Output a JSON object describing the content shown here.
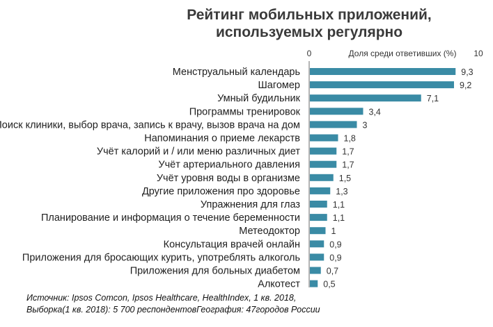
{
  "chart_data": {
    "type": "bar",
    "orientation": "horizontal",
    "title_lines": [
      "Рейтинг мобильных приложений,",
      "используемых регулярно"
    ],
    "axis_label": "Доля среди ответивших (%)",
    "xlim": [
      0,
      10
    ],
    "tick_labels": [
      "0",
      "10"
    ],
    "bar_color": "#3a8ba5",
    "categories": [
      "Менструальный календарь",
      "Шагомер",
      "Умный будильник",
      "Программы тренировок",
      "Поиск клиники, выбор врача, запись к врачу, вызов врача на дом",
      "Напоминания о приеме лекарств",
      "Учёт калорий и / или меню различных диет",
      "Учёт артериального давления",
      "Учёт уровня воды в организме",
      "Другие приложения про здоровье",
      "Упражнения для глаз",
      "Планирование и информация о течение беременности",
      "Метеодоктор",
      "Консультация врачей онлайн",
      "Приложения для бросающих курить, употреблять алкоголь",
      "Приложения для больных диабетом",
      "Алкотест"
    ],
    "values": [
      9.3,
      9.2,
      7.1,
      3.4,
      3,
      1.8,
      1.7,
      1.7,
      1.5,
      1.3,
      1.1,
      1.1,
      1,
      0.9,
      0.9,
      0.7,
      0.5
    ],
    "value_labels": [
      "9,3",
      "9,2",
      "7,1",
      "3,4",
      "3",
      "1,8",
      "1,7",
      "1,7",
      "1,5",
      "1,3",
      "1,1",
      "1,1",
      "1",
      "0,9",
      "0,9",
      "0,7",
      "0,5"
    ]
  },
  "source": {
    "line1": "Источник: Ipsos Comcon, Ipsos Healthcare, HealthIndex, 1 кв. 2018,",
    "line2": "Выборка(1 кв. 2018):  5 700 респондентовГеография: 47городов России"
  }
}
